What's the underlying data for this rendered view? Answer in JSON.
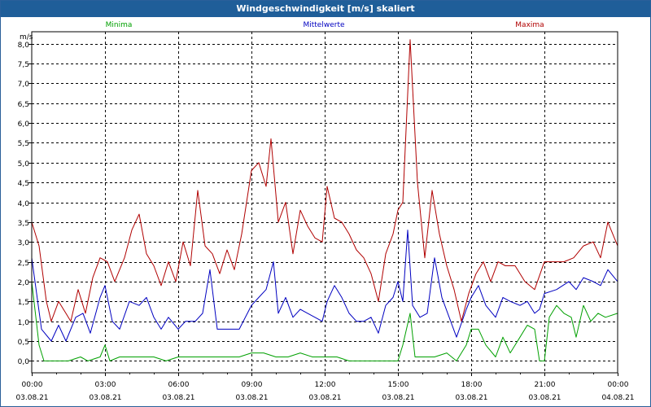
{
  "window": {
    "title": "Windgeschwindigkeit [m/s] skaliert"
  },
  "chart_data": {
    "type": "line",
    "title": "Windgeschwindigkeit [m/s] skaliert",
    "ylabel": "m/s",
    "xlabel": "",
    "ylim": [
      -0.3,
      8.3
    ],
    "xlim": [
      0,
      24
    ],
    "grid": true,
    "legend_placement": "top",
    "yticks": [
      "0,0",
      "0,5",
      "1,0",
      "1,5",
      "2,0",
      "2,5",
      "3,0",
      "3,5",
      "4,0",
      "4,5",
      "5,0",
      "5,5",
      "6,0",
      "6,5",
      "7,0",
      "7,5",
      "8,0"
    ],
    "xticks": [
      {
        "time": "00:00",
        "date": "03.08.21"
      },
      {
        "time": "03:00",
        "date": "03.08.21"
      },
      {
        "time": "06:00",
        "date": "03.08.21"
      },
      {
        "time": "09:00",
        "date": "03.08.21"
      },
      {
        "time": "12:00",
        "date": "03.08.21"
      },
      {
        "time": "15:00",
        "date": "03.08.21"
      },
      {
        "time": "18:00",
        "date": "03.08.21"
      },
      {
        "time": "21:00",
        "date": "03.08.21"
      },
      {
        "time": "00:00",
        "date": "04.08.21"
      }
    ],
    "series": [
      {
        "name": "Minima",
        "color": "#00a000",
        "points": [
          [
            0,
            2.0
          ],
          [
            0.3,
            0.4
          ],
          [
            0.5,
            0.0
          ],
          [
            1.0,
            0.0
          ],
          [
            1.5,
            0.0
          ],
          [
            2.0,
            0.1
          ],
          [
            2.3,
            0.0
          ],
          [
            2.8,
            0.1
          ],
          [
            3.0,
            0.4
          ],
          [
            3.2,
            0.0
          ],
          [
            3.6,
            0.1
          ],
          [
            4.0,
            0.1
          ],
          [
            4.5,
            0.1
          ],
          [
            5.0,
            0.1
          ],
          [
            5.5,
            0.0
          ],
          [
            6.0,
            0.1
          ],
          [
            6.5,
            0.1
          ],
          [
            7.0,
            0.1
          ],
          [
            7.5,
            0.1
          ],
          [
            8.0,
            0.1
          ],
          [
            8.5,
            0.1
          ],
          [
            9.0,
            0.2
          ],
          [
            9.5,
            0.2
          ],
          [
            10.0,
            0.1
          ],
          [
            10.5,
            0.1
          ],
          [
            11.0,
            0.2
          ],
          [
            11.5,
            0.1
          ],
          [
            12.0,
            0.1
          ],
          [
            12.5,
            0.1
          ],
          [
            13.0,
            0.0
          ],
          [
            13.5,
            0.0
          ],
          [
            14.0,
            0.0
          ],
          [
            14.5,
            0.0
          ],
          [
            15.0,
            0.0
          ],
          [
            15.2,
            0.4
          ],
          [
            15.5,
            1.2
          ],
          [
            15.7,
            0.1
          ],
          [
            16.0,
            0.1
          ],
          [
            16.5,
            0.1
          ],
          [
            17.0,
            0.2
          ],
          [
            17.2,
            0.1
          ],
          [
            17.4,
            0.0
          ],
          [
            17.8,
            0.4
          ],
          [
            18.0,
            0.8
          ],
          [
            18.3,
            0.8
          ],
          [
            18.6,
            0.4
          ],
          [
            19.0,
            0.1
          ],
          [
            19.3,
            0.6
          ],
          [
            19.6,
            0.2
          ],
          [
            20.0,
            0.6
          ],
          [
            20.3,
            0.9
          ],
          [
            20.6,
            0.8
          ],
          [
            20.8,
            0.0
          ],
          [
            21.0,
            0.0
          ],
          [
            21.2,
            1.1
          ],
          [
            21.5,
            1.4
          ],
          [
            21.8,
            1.2
          ],
          [
            22.1,
            1.1
          ],
          [
            22.3,
            0.6
          ],
          [
            22.6,
            1.4
          ],
          [
            22.9,
            1.0
          ],
          [
            23.2,
            1.2
          ],
          [
            23.5,
            1.1
          ],
          [
            24.0,
            1.2
          ]
        ]
      },
      {
        "name": "Mittelwerte",
        "color": "#0000c0",
        "points": [
          [
            0,
            2.6
          ],
          [
            0.4,
            0.8
          ],
          [
            0.8,
            0.5
          ],
          [
            1.1,
            0.9
          ],
          [
            1.4,
            0.5
          ],
          [
            1.8,
            1.1
          ],
          [
            2.1,
            1.2
          ],
          [
            2.4,
            0.7
          ],
          [
            2.8,
            1.6
          ],
          [
            3.0,
            1.9
          ],
          [
            3.3,
            1.0
          ],
          [
            3.6,
            0.8
          ],
          [
            4.0,
            1.5
          ],
          [
            4.4,
            1.4
          ],
          [
            4.7,
            1.6
          ],
          [
            5.0,
            1.1
          ],
          [
            5.3,
            0.8
          ],
          [
            5.6,
            1.1
          ],
          [
            6.0,
            0.8
          ],
          [
            6.3,
            1.0
          ],
          [
            6.7,
            1.0
          ],
          [
            7.0,
            1.2
          ],
          [
            7.3,
            2.3
          ],
          [
            7.6,
            0.8
          ],
          [
            8.0,
            0.8
          ],
          [
            8.5,
            0.8
          ],
          [
            9.0,
            1.4
          ],
          [
            9.3,
            1.6
          ],
          [
            9.6,
            1.8
          ],
          [
            9.9,
            2.5
          ],
          [
            10.1,
            1.2
          ],
          [
            10.4,
            1.6
          ],
          [
            10.7,
            1.1
          ],
          [
            11.0,
            1.3
          ],
          [
            11.3,
            1.2
          ],
          [
            11.6,
            1.1
          ],
          [
            11.9,
            1.0
          ],
          [
            12.1,
            1.5
          ],
          [
            12.4,
            1.9
          ],
          [
            12.7,
            1.6
          ],
          [
            13.0,
            1.2
          ],
          [
            13.3,
            1.0
          ],
          [
            13.6,
            1.0
          ],
          [
            13.9,
            1.1
          ],
          [
            14.2,
            0.7
          ],
          [
            14.5,
            1.4
          ],
          [
            14.8,
            1.6
          ],
          [
            15.0,
            2.0
          ],
          [
            15.2,
            1.5
          ],
          [
            15.4,
            3.3
          ],
          [
            15.6,
            1.4
          ],
          [
            15.9,
            1.1
          ],
          [
            16.2,
            1.2
          ],
          [
            16.5,
            2.6
          ],
          [
            16.8,
            1.6
          ],
          [
            17.1,
            1.1
          ],
          [
            17.4,
            0.6
          ],
          [
            17.8,
            1.3
          ],
          [
            18.0,
            1.6
          ],
          [
            18.3,
            1.9
          ],
          [
            18.6,
            1.4
          ],
          [
            19.0,
            1.1
          ],
          [
            19.3,
            1.6
          ],
          [
            19.6,
            1.5
          ],
          [
            20.0,
            1.4
          ],
          [
            20.3,
            1.5
          ],
          [
            20.6,
            1.2
          ],
          [
            20.8,
            1.3
          ],
          [
            21.0,
            1.7
          ],
          [
            21.5,
            1.8
          ],
          [
            22.0,
            2.0
          ],
          [
            22.3,
            1.8
          ],
          [
            22.6,
            2.1
          ],
          [
            23.0,
            2.0
          ],
          [
            23.3,
            1.9
          ],
          [
            23.6,
            2.3
          ],
          [
            24.0,
            2.0
          ]
        ]
      },
      {
        "name": "Maxima",
        "color": "#b00000",
        "points": [
          [
            0,
            3.5
          ],
          [
            0.3,
            2.9
          ],
          [
            0.6,
            1.5
          ],
          [
            0.8,
            1.0
          ],
          [
            1.1,
            1.5
          ],
          [
            1.4,
            1.2
          ],
          [
            1.6,
            1.0
          ],
          [
            1.9,
            1.8
          ],
          [
            2.2,
            1.2
          ],
          [
            2.5,
            2.1
          ],
          [
            2.8,
            2.6
          ],
          [
            3.1,
            2.5
          ],
          [
            3.4,
            2.0
          ],
          [
            3.8,
            2.6
          ],
          [
            4.1,
            3.3
          ],
          [
            4.4,
            3.7
          ],
          [
            4.7,
            2.7
          ],
          [
            5.0,
            2.4
          ],
          [
            5.3,
            1.9
          ],
          [
            5.6,
            2.5
          ],
          [
            5.9,
            2.0
          ],
          [
            6.2,
            3.0
          ],
          [
            6.5,
            2.4
          ],
          [
            6.8,
            4.3
          ],
          [
            7.1,
            2.9
          ],
          [
            7.4,
            2.7
          ],
          [
            7.7,
            2.2
          ],
          [
            8.0,
            2.8
          ],
          [
            8.3,
            2.3
          ],
          [
            8.6,
            3.2
          ],
          [
            9.0,
            4.8
          ],
          [
            9.3,
            5.0
          ],
          [
            9.6,
            4.4
          ],
          [
            9.8,
            5.6
          ],
          [
            10.1,
            3.5
          ],
          [
            10.4,
            4.0
          ],
          [
            10.7,
            2.7
          ],
          [
            11.0,
            3.8
          ],
          [
            11.3,
            3.4
          ],
          [
            11.6,
            3.1
          ],
          [
            11.9,
            3.0
          ],
          [
            12.1,
            4.4
          ],
          [
            12.4,
            3.6
          ],
          [
            12.7,
            3.5
          ],
          [
            13.0,
            3.2
          ],
          [
            13.3,
            2.8
          ],
          [
            13.6,
            2.6
          ],
          [
            13.9,
            2.2
          ],
          [
            14.2,
            1.5
          ],
          [
            14.5,
            2.7
          ],
          [
            14.8,
            3.2
          ],
          [
            15.0,
            3.8
          ],
          [
            15.2,
            4.0
          ],
          [
            15.5,
            8.1
          ],
          [
            15.8,
            4.5
          ],
          [
            16.1,
            2.6
          ],
          [
            16.4,
            4.3
          ],
          [
            16.7,
            3.2
          ],
          [
            17.0,
            2.4
          ],
          [
            17.3,
            1.8
          ],
          [
            17.6,
            1.0
          ],
          [
            17.9,
            1.7
          ],
          [
            18.2,
            2.2
          ],
          [
            18.5,
            2.5
          ],
          [
            18.8,
            2.0
          ],
          [
            19.1,
            2.5
          ],
          [
            19.4,
            2.4
          ],
          [
            19.8,
            2.4
          ],
          [
            20.2,
            2.0
          ],
          [
            20.6,
            1.8
          ],
          [
            21.0,
            2.5
          ],
          [
            21.4,
            2.5
          ],
          [
            21.8,
            2.5
          ],
          [
            22.2,
            2.6
          ],
          [
            22.6,
            2.9
          ],
          [
            23.0,
            3.0
          ],
          [
            23.3,
            2.6
          ],
          [
            23.6,
            3.5
          ],
          [
            24.0,
            2.9
          ]
        ]
      }
    ]
  }
}
